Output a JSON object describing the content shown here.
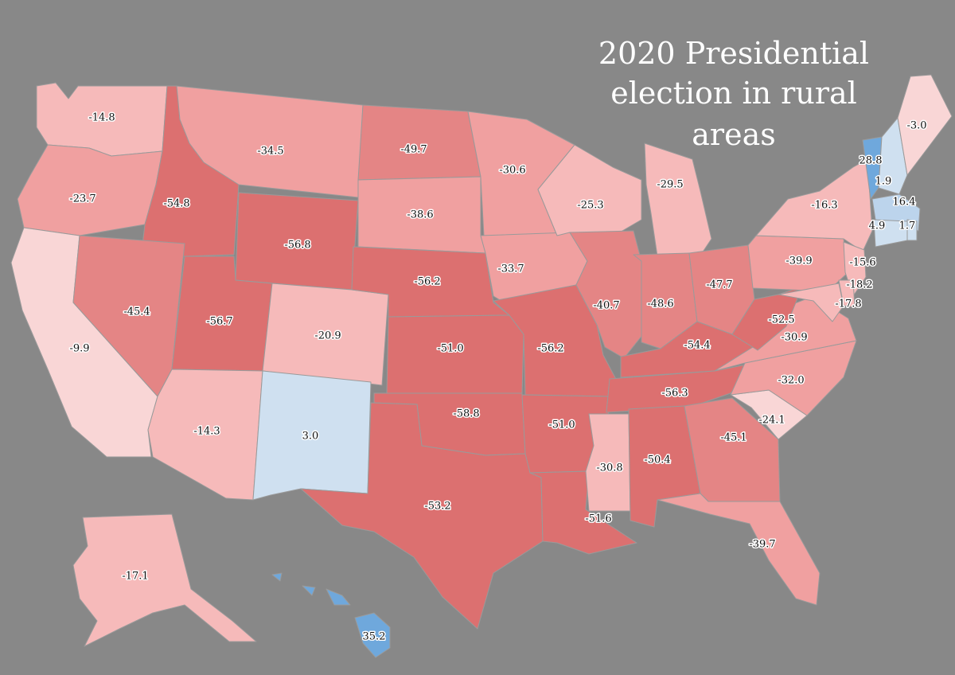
{
  "title_lines": [
    "2020 Presidential",
    "election in rural",
    "areas"
  ],
  "colors": {
    "background": "#888888",
    "r_strong": "#dc7070",
    "r_high": "#e48585",
    "r_mid": "#f0a0a0",
    "r_low": "#f6baba",
    "r_faint": "#f9d6d6",
    "d_light": "#cfe0f0",
    "d_mid": "#bcd4ec",
    "d_strong": "#6fa8dc"
  },
  "states": [
    {
      "code": "WA",
      "margin": "-14.8",
      "tier": "r_low"
    },
    {
      "code": "OR",
      "margin": "-23.7",
      "tier": "r_mid"
    },
    {
      "code": "CA",
      "margin": "-9.9",
      "tier": "r_faint"
    },
    {
      "code": "ID",
      "margin": "-54.8",
      "tier": "r_strong"
    },
    {
      "code": "NV",
      "margin": "-45.4",
      "tier": "r_high"
    },
    {
      "code": "MT",
      "margin": "-34.5",
      "tier": "r_mid"
    },
    {
      "code": "WY",
      "margin": "-56.8",
      "tier": "r_strong"
    },
    {
      "code": "UT",
      "margin": "-56.7",
      "tier": "r_strong"
    },
    {
      "code": "AZ",
      "margin": "-14.3",
      "tier": "r_low"
    },
    {
      "code": "CO",
      "margin": "-20.9",
      "tier": "r_low"
    },
    {
      "code": "NM",
      "margin": "3.0",
      "tier": "d_light"
    },
    {
      "code": "ND",
      "margin": "-49.7",
      "tier": "r_high"
    },
    {
      "code": "SD",
      "margin": "-38.6",
      "tier": "r_mid"
    },
    {
      "code": "NE",
      "margin": "-56.2",
      "tier": "r_strong"
    },
    {
      "code": "KS",
      "margin": "-51.0",
      "tier": "r_strong"
    },
    {
      "code": "OK",
      "margin": "-58.8",
      "tier": "r_strong"
    },
    {
      "code": "TX",
      "margin": "-53.2",
      "tier": "r_strong"
    },
    {
      "code": "MN",
      "margin": "-30.6",
      "tier": "r_mid"
    },
    {
      "code": "IA",
      "margin": "-33.7",
      "tier": "r_mid"
    },
    {
      "code": "MO",
      "margin": "-56.2",
      "tier": "r_strong"
    },
    {
      "code": "AR",
      "margin": "-51.0",
      "tier": "r_strong"
    },
    {
      "code": "LA",
      "margin": "-51.6",
      "tier": "r_strong"
    },
    {
      "code": "WI",
      "margin": "-25.3",
      "tier": "r_low"
    },
    {
      "code": "IL",
      "margin": "-40.7",
      "tier": "r_high"
    },
    {
      "code": "MI",
      "margin": "-29.5",
      "tier": "r_low"
    },
    {
      "code": "IN",
      "margin": "-48.6",
      "tier": "r_high"
    },
    {
      "code": "OH",
      "margin": "-47.7",
      "tier": "r_high"
    },
    {
      "code": "KY",
      "margin": "-54.4",
      "tier": "r_strong"
    },
    {
      "code": "TN",
      "margin": "-56.3",
      "tier": "r_strong"
    },
    {
      "code": "MS",
      "margin": "-30.8",
      "tier": "r_low"
    },
    {
      "code": "AL",
      "margin": "-50.4",
      "tier": "r_strong"
    },
    {
      "code": "GA",
      "margin": "-45.1",
      "tier": "r_high"
    },
    {
      "code": "FL",
      "margin": "-39.7",
      "tier": "r_mid"
    },
    {
      "code": "SC",
      "margin": "-24.1",
      "tier": "r_faint"
    },
    {
      "code": "NC",
      "margin": "-32.0",
      "tier": "r_mid"
    },
    {
      "code": "VA",
      "margin": "-30.9",
      "tier": "r_mid"
    },
    {
      "code": "WV",
      "margin": "-52.5",
      "tier": "r_strong"
    },
    {
      "code": "PA",
      "margin": "-39.9",
      "tier": "r_mid"
    },
    {
      "code": "NY",
      "margin": "-16.3",
      "tier": "r_low"
    },
    {
      "code": "NJ",
      "margin": "-15.6",
      "tier": "r_low"
    },
    {
      "code": "DE",
      "margin": "-18.2",
      "tier": "r_low"
    },
    {
      "code": "MD",
      "margin": "-17.8",
      "tier": "r_low"
    },
    {
      "code": "VT",
      "margin": "28.8",
      "tier": "d_strong"
    },
    {
      "code": "NH",
      "margin": "1.9",
      "tier": "d_light"
    },
    {
      "code": "ME",
      "margin": "-3.0",
      "tier": "r_faint"
    },
    {
      "code": "MA",
      "margin": "16.4",
      "tier": "d_mid"
    },
    {
      "code": "CT",
      "margin": "4.9",
      "tier": "d_light"
    },
    {
      "code": "RI",
      "margin": "1.7",
      "tier": "d_light"
    },
    {
      "code": "AK",
      "margin": "-17.1",
      "tier": "r_low"
    },
    {
      "code": "HI",
      "margin": "35.2",
      "tier": "d_strong"
    }
  ]
}
